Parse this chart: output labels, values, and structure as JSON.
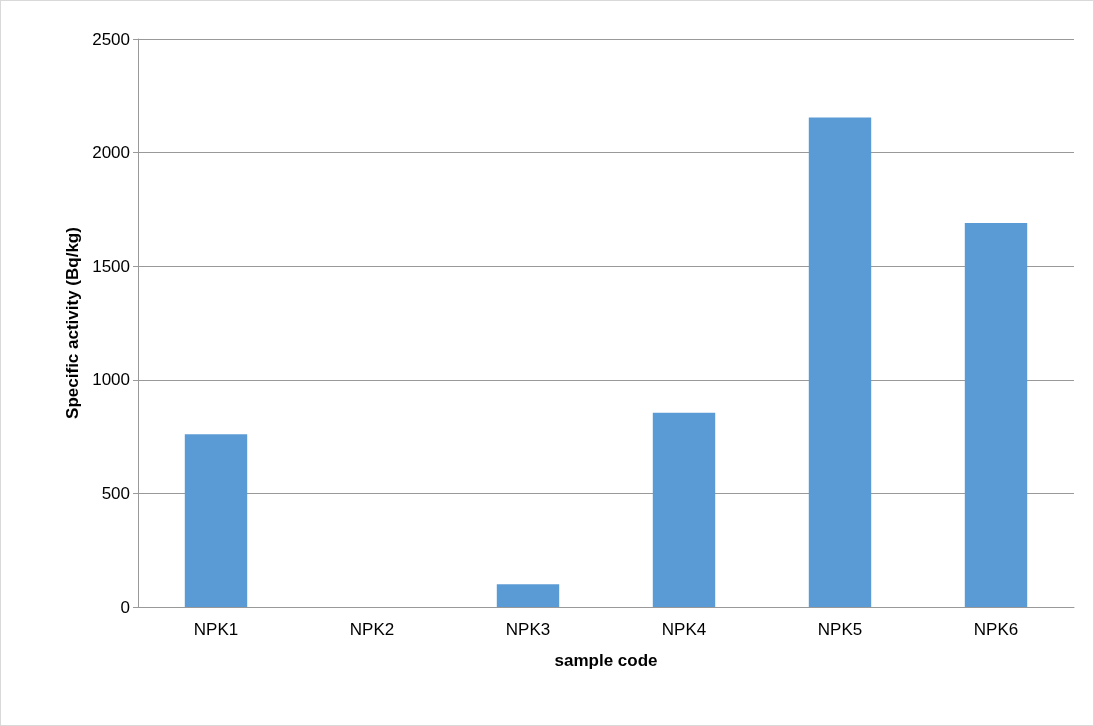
{
  "chart_data": {
    "type": "bar",
    "xlabel": "sample code",
    "ylabel": "Specific activity (Bq/kg)",
    "categories": [
      "NPK1",
      "NPK2",
      "NPK3",
      "NPK4",
      "NPK5",
      "NPK6"
    ],
    "values": [
      760,
      0,
      100,
      855,
      2155,
      1690
    ],
    "color": "#5b9bd5",
    "ylim": [
      0,
      2500
    ],
    "yticks": [
      0,
      500,
      1000,
      1500,
      2000,
      2500
    ],
    "grid": "y"
  }
}
